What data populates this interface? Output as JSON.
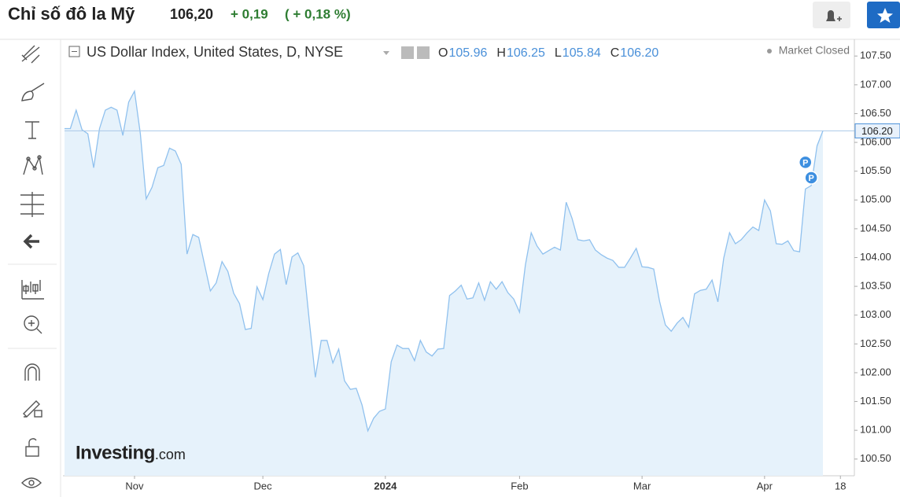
{
  "header": {
    "title": "Chỉ số đô la Mỹ",
    "price": "106,20",
    "change": "+ 0,19",
    "change_pct": "( + 0,18 %)"
  },
  "chart_data": {
    "type": "area",
    "title": "US Dollar Index, United States, D, NYSE",
    "ohlc": [
      {
        "name": "O",
        "value": 105.96,
        "label": "105.96"
      },
      {
        "name": "H",
        "value": 106.25,
        "label": "106.25"
      },
      {
        "name": "L",
        "value": 105.84,
        "label": "105.84"
      },
      {
        "name": "C",
        "value": 106.2,
        "label": "106.20"
      }
    ],
    "status": "Market Closed",
    "last_price": {
      "value": 106.2,
      "label": "106.20"
    },
    "markers": [
      "P",
      "P"
    ],
    "watermark": [
      "Investing",
      ".com"
    ],
    "color": "#90c1ee",
    "fill": "#e6f2fb",
    "categories": [
      null,
      null,
      null,
      null,
      null,
      null,
      null,
      null,
      null,
      null,
      null,
      null,
      "Nov",
      null,
      null,
      null,
      null,
      null,
      null,
      null,
      null,
      null,
      null,
      null,
      null,
      null,
      null,
      null,
      null,
      null,
      null,
      null,
      null,
      null,
      "Dec",
      null,
      null,
      null,
      null,
      null,
      null,
      null,
      null,
      null,
      null,
      null,
      null,
      null,
      null,
      null,
      null,
      null,
      null,
      null,
      null,
      "2024",
      null,
      null,
      null,
      null,
      null,
      null,
      null,
      null,
      null,
      null,
      null,
      null,
      null,
      null,
      null,
      null,
      null,
      null,
      null,
      null,
      null,
      null,
      "Feb",
      null,
      null,
      null,
      null,
      null,
      null,
      null,
      null,
      null,
      null,
      null,
      null,
      null,
      null,
      null,
      null,
      null,
      null,
      null,
      null,
      "Mar",
      null,
      null,
      null,
      null,
      null,
      null,
      null,
      null,
      null,
      null,
      null,
      null,
      null,
      null,
      null,
      null,
      null,
      null,
      null,
      null,
      "Apr",
      null,
      null,
      null,
      null,
      null,
      null,
      null,
      null,
      null,
      null,
      null,
      null,
      "18"
    ],
    "values": [
      106.24,
      106.24,
      106.56,
      106.22,
      106.15,
      105.56,
      106.24,
      106.56,
      106.61,
      106.56,
      106.12,
      106.7,
      106.89,
      106.15,
      105.02,
      105.22,
      105.56,
      105.6,
      105.9,
      105.85,
      105.62,
      104.06,
      104.4,
      104.35,
      103.88,
      103.42,
      103.56,
      103.93,
      103.76,
      103.38,
      103.2,
      102.75,
      102.77,
      103.49,
      103.27,
      103.72,
      104.06,
      104.14,
      103.53,
      104.01,
      104.08,
      103.86,
      102.86,
      101.92,
      102.56,
      102.56,
      102.17,
      102.41,
      101.86,
      101.71,
      101.73,
      101.44,
      100.99,
      101.21,
      101.33,
      101.37,
      102.19,
      102.48,
      102.42,
      102.42,
      102.21,
      102.56,
      102.36,
      102.29,
      102.41,
      102.42,
      103.34,
      103.42,
      103.52,
      103.28,
      103.3,
      103.56,
      103.26,
      103.58,
      103.45,
      103.58,
      103.39,
      103.28,
      103.05,
      103.87,
      104.43,
      104.2,
      104.06,
      104.12,
      104.18,
      104.13,
      104.96,
      104.68,
      104.31,
      104.29,
      104.31,
      104.13,
      104.05,
      103.99,
      103.95,
      103.83,
      103.83,
      103.99,
      104.16,
      103.84,
      103.83,
      103.8,
      103.24,
      102.83,
      102.72,
      102.86,
      102.96,
      102.79,
      103.37,
      103.43,
      103.45,
      103.61,
      103.23,
      103.99,
      104.43,
      104.24,
      104.31,
      104.43,
      104.53,
      104.47,
      105.0,
      104.81,
      104.24,
      104.23,
      104.29,
      104.12,
      104.1,
      105.19,
      105.25,
      105.94,
      106.2,
      null,
      null,
      null
    ],
    "ylim": [
      100.21,
      107.79
    ],
    "yticks": [
      {
        "value": 100.5,
        "label": "100.50"
      },
      {
        "value": 101,
        "label": "101.00"
      },
      {
        "value": 101.5,
        "label": "101.50"
      },
      {
        "value": 102,
        "label": "102.00"
      },
      {
        "value": 102.5,
        "label": "102.50"
      },
      {
        "value": 103,
        "label": "103.00"
      },
      {
        "value": 103.5,
        "label": "103.50"
      },
      {
        "value": 104,
        "label": "104.00"
      },
      {
        "value": 104.5,
        "label": "104.50"
      },
      {
        "value": 105,
        "label": "105.00"
      },
      {
        "value": 105.5,
        "label": "105.50"
      },
      {
        "value": 106,
        "label": "106.00"
      },
      {
        "value": 106.5,
        "label": "106.50"
      },
      {
        "value": 107,
        "label": "107.00"
      },
      {
        "value": 107.5,
        "label": "107.50"
      }
    ]
  }
}
